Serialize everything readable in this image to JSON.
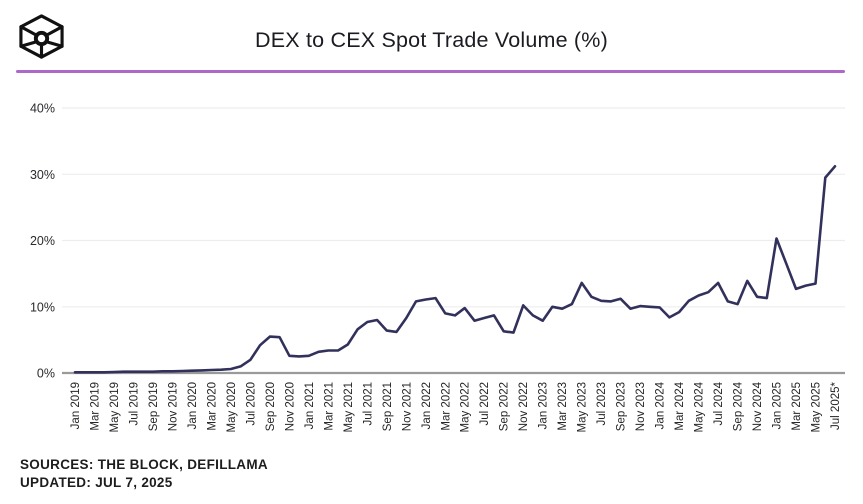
{
  "header": {
    "title": "DEX to CEX Spot Trade Volume (%)"
  },
  "footer": {
    "sources": "SOURCES: THE BLOCK, DEFILLAMA",
    "updated": "UPDATED: JUL 7, 2025"
  },
  "colors": {
    "line": "#32315c",
    "divider": "#ae68c9",
    "gridline": "#ededed",
    "axis": "#9a9a9a",
    "logo": "#111111"
  },
  "chart_data": {
    "type": "line",
    "title": "DEX to CEX Spot Trade Volume (%)",
    "x_unit": "month",
    "x_start": "Jan 2019",
    "x_end": "Jul 2025",
    "x_tick_labels": [
      "Jan 2019",
      "Mar 2019",
      "May 2019",
      "Jul 2019",
      "Sep 2019",
      "Nov 2019",
      "Jan 2020",
      "Mar 2020",
      "May 2020",
      "Jul 2020",
      "Sep 2020",
      "Nov 2020",
      "Jan 2021",
      "Mar 2021",
      "May 2021",
      "Jul 2021",
      "Sep 2021",
      "Nov 2021",
      "Jan 2022",
      "Mar 2022",
      "May 2022",
      "Jul 2022",
      "Sep 2022",
      "Nov 2022",
      "Jan 2023",
      "Mar 2023",
      "May 2023",
      "Jul 2023",
      "Sep 2023",
      "Nov 2023",
      "Jan 2024",
      "Mar 2024",
      "May 2024",
      "Jul 2024",
      "Sep 2024",
      "Nov 2024",
      "Jan 2025",
      "Mar 2025",
      "May 2025",
      "Jul 2025*"
    ],
    "y_ticks": [
      0,
      10,
      20,
      30,
      40
    ],
    "y_tick_labels": [
      "0%",
      "10%",
      "20%",
      "30%",
      "40%"
    ],
    "ylim": [
      0,
      44
    ],
    "grid": "horizontal",
    "legend": "none",
    "series": [
      {
        "name": "DEX to CEX spot trade volume (%)",
        "values": [
          0.1,
          0.1,
          0.1,
          0.1,
          0.15,
          0.2,
          0.2,
          0.2,
          0.2,
          0.25,
          0.25,
          0.3,
          0.35,
          0.4,
          0.45,
          0.5,
          0.6,
          1.0,
          2.0,
          4.2,
          5.5,
          5.4,
          2.6,
          2.5,
          2.6,
          3.2,
          3.4,
          3.4,
          4.3,
          6.6,
          7.7,
          8.0,
          6.4,
          6.2,
          8.3,
          10.8,
          11.1,
          11.3,
          9.0,
          8.7,
          9.8,
          7.9,
          8.3,
          8.7,
          6.3,
          6.1,
          10.2,
          8.7,
          7.9,
          10.0,
          9.7,
          10.4,
          13.6,
          11.5,
          10.9,
          10.8,
          11.2,
          9.7,
          10.1,
          10.0,
          9.9,
          8.4,
          9.2,
          10.9,
          11.7,
          12.2,
          13.6,
          10.8,
          10.4,
          13.9,
          11.5,
          11.3,
          20.3,
          16.5,
          12.7,
          13.2,
          13.5,
          29.5,
          31.2
        ]
      }
    ]
  }
}
